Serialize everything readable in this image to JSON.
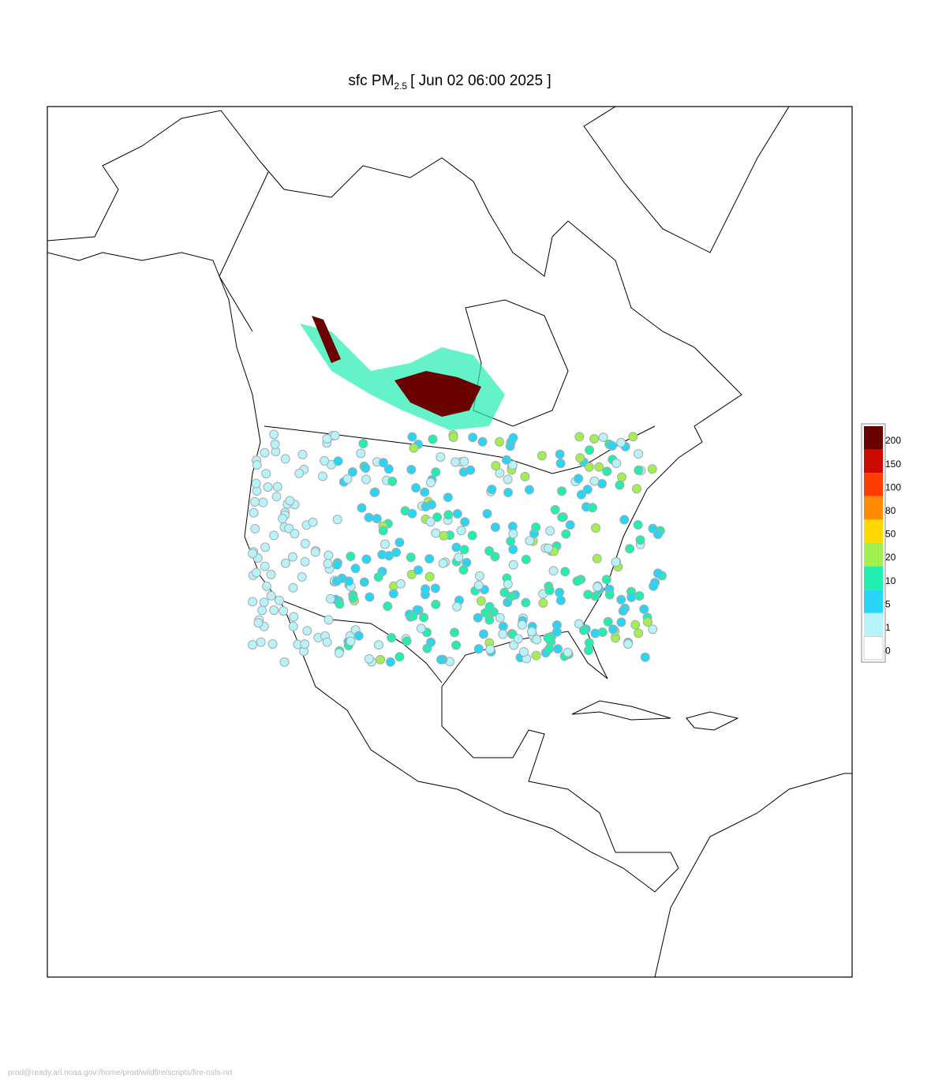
{
  "title": {
    "main": "sfc PM",
    "sub": "2.5",
    "date": "[ Jun 02 06:00 2025 ]"
  },
  "legend": {
    "levels": [
      0,
      1,
      5,
      10,
      20,
      50,
      80,
      100,
      150,
      200
    ],
    "colors": [
      "#ffffff",
      "#b6f3fb",
      "#2ad4f5",
      "#22eeb0",
      "#a2f050",
      "#ffd800",
      "#ff8a00",
      "#ff3c00",
      "#cc0a00",
      "#6b0000"
    ]
  },
  "footer": "prod@ready.arl.noaa.gov:/home/prod/wildfire/scripts/fire-nsfs-nrt"
}
